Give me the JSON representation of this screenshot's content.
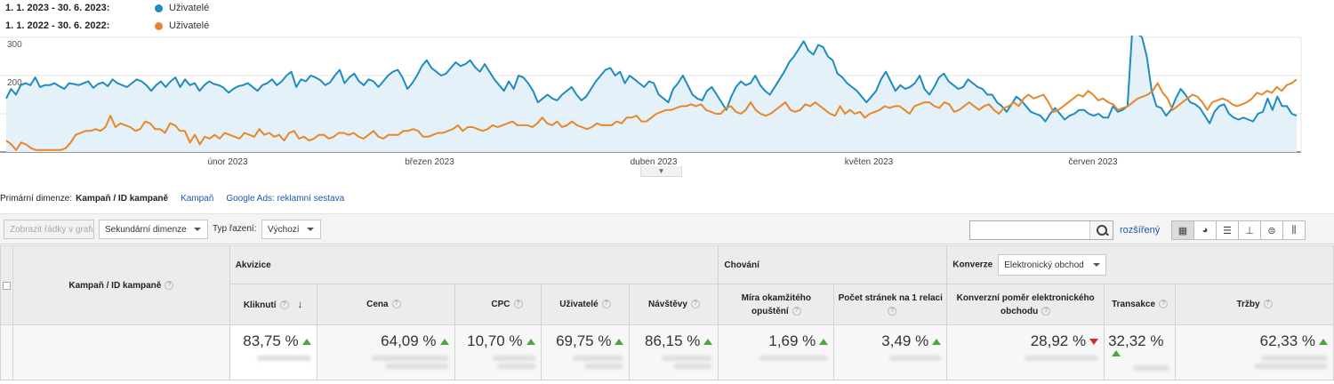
{
  "legend": [
    {
      "range": "1. 1. 2023 - 30. 6. 2023:",
      "metric": "Uživatelé",
      "color": "#1f8cc1"
    },
    {
      "range": "1. 1. 2022 - 30. 6. 2022:",
      "metric": "Uživatelé",
      "color": "#e7872b"
    }
  ],
  "chart_data": {
    "type": "area",
    "title": "",
    "ylim": [
      0,
      300
    ],
    "yticks": [
      100,
      200,
      300
    ],
    "xlabels": [
      "únor 2023",
      "březen 2023",
      "duben 2023",
      "květen 2023",
      "červen 2023"
    ],
    "series": [
      {
        "name": "Uživatelé",
        "color": "#1f8cc1",
        "values": [
          140,
          165,
          150,
          175,
          180,
          175,
          195,
          170,
          175,
          175,
          180,
          172,
          165,
          180,
          178,
          175,
          180,
          185,
          168,
          178,
          182,
          172,
          190,
          180,
          175,
          170,
          180,
          190,
          185,
          175,
          160,
          175,
          185,
          170,
          185,
          195,
          170,
          190,
          175,
          180,
          160,
          175,
          185,
          178,
          175,
          168,
          155,
          165,
          172,
          175,
          180,
          170,
          160,
          175,
          180,
          190,
          175,
          185,
          200,
          210,
          170,
          190,
          185,
          200,
          195,
          188,
          175,
          182,
          200,
          215,
          180,
          195,
          205,
          185,
          175,
          190,
          185,
          170,
          185,
          200,
          210,
          215,
          195,
          165,
          180,
          200,
          225,
          240,
          220,
          210,
          200,
          205,
          220,
          235,
          225,
          230,
          240,
          222,
          210,
          230,
          210,
          190,
          175,
          160,
          185,
          165,
          200,
          195,
          180,
          160,
          130,
          140,
          150,
          140,
          135,
          150,
          160,
          170,
          150,
          135,
          145,
          165,
          185,
          200,
          215,
          220,
          200,
          210,
          180,
          200,
          190,
          180,
          170,
          185,
          180,
          150,
          140,
          130,
          165,
          180,
          200,
          175,
          150,
          140,
          135,
          160,
          170,
          150,
          130,
          110,
          145,
          170,
          185,
          175,
          180,
          200,
          175,
          160,
          150,
          170,
          190,
          210,
          235,
          250,
          270,
          290,
          265,
          255,
          280,
          275,
          250,
          240,
          205,
          195,
          180,
          170,
          160,
          145,
          130,
          145,
          160,
          190,
          210,
          185,
          160,
          175,
          165,
          170,
          180,
          200,
          165,
          150,
          170,
          195,
          205,
          185,
          175,
          165,
          170,
          190,
          180,
          170,
          165,
          150,
          150,
          130,
          120,
          105,
          125,
          145,
          135,
          120,
          105,
          100,
          95,
          80,
          100,
          115,
          100,
          85,
          95,
          100,
          110,
          110,
          100,
          95,
          100,
          90,
          90,
          120,
          105,
          110,
          120,
          320,
          310,
          300,
          250,
          160,
          120,
          115,
          95,
          110,
          140,
          165,
          150,
          130,
          125,
          115,
          95,
          75,
          105,
          120,
          125,
          100,
          90,
          85,
          90,
          85,
          80,
          100,
          105,
          140,
          110,
          145,
          120,
          120,
          100,
          95
        ]
      },
      {
        "name": "Uživatelé",
        "color": "#e7872b",
        "values": [
          30,
          20,
          5,
          25,
          20,
          10,
          5,
          5,
          5,
          5,
          5,
          5,
          10,
          25,
          45,
          50,
          55,
          55,
          60,
          55,
          65,
          95,
          65,
          75,
          70,
          65,
          55,
          60,
          80,
          75,
          60,
          60,
          50,
          75,
          70,
          55,
          55,
          25,
          45,
          20,
          40,
          35,
          45,
          35,
          50,
          45,
          40,
          35,
          50,
          45,
          40,
          60,
          45,
          50,
          40,
          45,
          30,
          50,
          55,
          35,
          40,
          30,
          35,
          45,
          45,
          35,
          40,
          50,
          50,
          45,
          50,
          40,
          35,
          45,
          55,
          40,
          35,
          45,
          45,
          45,
          55,
          55,
          60,
          55,
          40,
          40,
          45,
          50,
          50,
          55,
          60,
          70,
          55,
          65,
          65,
          60,
          55,
          60,
          70,
          65,
          70,
          75,
          80,
          70,
          70,
          70,
          65,
          75,
          90,
          75,
          70,
          80,
          65,
          70,
          80,
          70,
          65,
          60,
          65,
          75,
          70,
          70,
          70,
          80,
          75,
          90,
          90,
          95,
          80,
          80,
          90,
          100,
          105,
          110,
          110,
          115,
          120,
          120,
          125,
          120,
          125,
          110,
          105,
          100,
          100,
          115,
          120,
          105,
          100,
          110,
          130,
          110,
          100,
          95,
          100,
          110,
          120,
          130,
          110,
          105,
          110,
          125,
          120,
          130,
          120,
          110,
          100,
          95,
          120,
          100,
          110,
          100,
          105,
          90,
          100,
          105,
          110,
          120,
          115,
          120,
          120,
          110,
          100,
          120,
          125,
          130,
          130,
          120,
          115,
          130,
          125,
          105,
          110,
          120,
          130,
          120,
          110,
          120,
          125,
          110,
          100,
          115,
          120,
          130,
          120,
          140,
          150,
          140,
          145,
          150,
          130,
          105,
          110,
          120,
          130,
          140,
          150,
          145,
          160,
          150,
          135,
          140,
          130,
          125,
          110,
          115,
          120,
          130,
          140,
          145,
          150,
          160,
          180,
          155,
          140,
          110,
          120,
          130,
          140,
          150,
          145,
          130,
          110,
          130,
          135,
          140,
          135,
          125,
          120,
          125,
          130,
          140,
          155,
          150,
          160,
          155,
          170,
          160,
          175,
          180,
          190
        ]
      }
    ],
    "grid": true,
    "legend": "top-left"
  },
  "dims": {
    "prefix": "Primární dimenze:",
    "active": "Kampaň / ID kampaně",
    "link1": "Kampaň",
    "link2": "Google Ads: reklamní sestava"
  },
  "toolbar": {
    "plot_rows": "Zobrazit řádky v grafu",
    "secondary": "Sekundární dimenze",
    "sort_label": "Typ řazení:",
    "sort_value": "Výchozí",
    "search_placeholder": "",
    "advanced": "rozšířený"
  },
  "table": {
    "first_header": "Kampaň / ID kampaně",
    "groups": {
      "acq": "Akvizice",
      "beh": "Chování",
      "conv": "Konverze",
      "conv_select": "Elektronický obchod"
    },
    "columns": [
      {
        "label": "Kliknutí",
        "value": "83,75 %",
        "dir": "up"
      },
      {
        "label": "Cena",
        "value": "64,09 %",
        "dir": "up"
      },
      {
        "label": "CPC",
        "value": "10,70 %",
        "dir": "down-green"
      },
      {
        "label": "Uživatelé",
        "value": "69,75 %",
        "dir": "up"
      },
      {
        "label": "Návštěvy",
        "value": "86,15 %",
        "dir": "up"
      },
      {
        "label": "Míra okamžitého opuštění",
        "value": "1,69 %",
        "dir": "down-green"
      },
      {
        "label": "Počet stránek na 1 relaci",
        "value": "3,49 %",
        "dir": "up"
      },
      {
        "label": "Konverzní poměr elektronického obchodu",
        "value": "28,92 %",
        "dir": "down"
      },
      {
        "label": "Transakce",
        "value": "32,32 %",
        "dir": "up"
      },
      {
        "label": "Tržby",
        "value": "62,33 %",
        "dir": "up"
      }
    ]
  }
}
